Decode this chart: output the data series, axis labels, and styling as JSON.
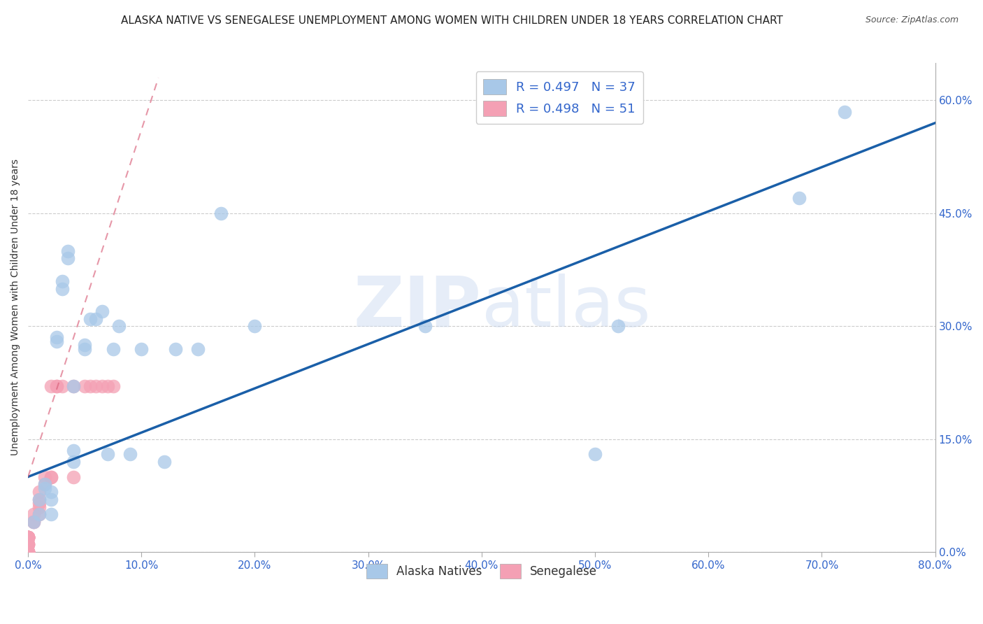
{
  "title": "ALASKA NATIVE VS SENEGALESE UNEMPLOYMENT AMONG WOMEN WITH CHILDREN UNDER 18 YEARS CORRELATION CHART",
  "source": "Source: ZipAtlas.com",
  "ylabel": "Unemployment Among Women with Children Under 18 years",
  "watermark": "ZIPatlas",
  "legend_r1": "R = 0.497",
  "legend_n1": "N = 37",
  "legend_r2": "R = 0.498",
  "legend_n2": "N = 51",
  "xlim": [
    0.0,
    0.8
  ],
  "ylim": [
    0.0,
    0.65
  ],
  "xticks": [
    0.0,
    0.1,
    0.2,
    0.3,
    0.4,
    0.5,
    0.6,
    0.7,
    0.8
  ],
  "yticks_right": [
    0.0,
    0.15,
    0.3,
    0.45,
    0.6
  ],
  "ytick_right_labels": [
    "0.0%",
    "15.0%",
    "30.0%",
    "45.0%",
    "60.0%"
  ],
  "xtick_labels": [
    "0.0%",
    "10.0%",
    "20.0%",
    "30.0%",
    "40.0%",
    "50.0%",
    "60.0%",
    "70.0%",
    "80.0%"
  ],
  "alaska_color": "#a8c8e8",
  "senegalese_color": "#f4a0b4",
  "alaska_line_color": "#1a5fa8",
  "senegalese_line_color": "#d9607a",
  "background_color": "#ffffff",
  "grid_color": "#cccccc",
  "tick_color": "#3366cc",
  "title_fontsize": 11,
  "axis_label_fontsize": 10,
  "tick_fontsize": 11,
  "alaska_x": [
    0.005,
    0.01,
    0.01,
    0.015,
    0.015,
    0.02,
    0.02,
    0.02,
    0.025,
    0.025,
    0.03,
    0.03,
    0.035,
    0.035,
    0.04,
    0.04,
    0.04,
    0.05,
    0.05,
    0.055,
    0.06,
    0.065,
    0.07,
    0.075,
    0.08,
    0.09,
    0.1,
    0.12,
    0.13,
    0.15,
    0.17,
    0.2,
    0.35,
    0.5,
    0.52,
    0.68,
    0.72
  ],
  "alaska_y": [
    0.04,
    0.05,
    0.07,
    0.085,
    0.09,
    0.05,
    0.07,
    0.08,
    0.28,
    0.285,
    0.35,
    0.36,
    0.39,
    0.4,
    0.12,
    0.135,
    0.22,
    0.27,
    0.275,
    0.31,
    0.31,
    0.32,
    0.13,
    0.27,
    0.3,
    0.13,
    0.27,
    0.12,
    0.27,
    0.27,
    0.45,
    0.3,
    0.3,
    0.13,
    0.3,
    0.47,
    0.585
  ],
  "senegalese_x": [
    0.0,
    0.0,
    0.0,
    0.0,
    0.0,
    0.0,
    0.0,
    0.0,
    0.0,
    0.0,
    0.0,
    0.0,
    0.0,
    0.0,
    0.0,
    0.0,
    0.0,
    0.0,
    0.0,
    0.0,
    0.0,
    0.0,
    0.0,
    0.0,
    0.0,
    0.0,
    0.0,
    0.005,
    0.005,
    0.005,
    0.01,
    0.01,
    0.01,
    0.01,
    0.01,
    0.015,
    0.015,
    0.02,
    0.02,
    0.02,
    0.025,
    0.025,
    0.03,
    0.04,
    0.04,
    0.05,
    0.055,
    0.06,
    0.065,
    0.07,
    0.075
  ],
  "senegalese_y": [
    0.0,
    0.0,
    0.0,
    0.0,
    0.0,
    0.0,
    0.0,
    0.0,
    0.0,
    0.0,
    0.0,
    0.01,
    0.01,
    0.01,
    0.01,
    0.02,
    0.02,
    0.02,
    0.02,
    0.02,
    0.02,
    0.02,
    0.02,
    0.02,
    0.02,
    0.02,
    0.02,
    0.04,
    0.04,
    0.05,
    0.05,
    0.06,
    0.065,
    0.07,
    0.08,
    0.09,
    0.1,
    0.1,
    0.1,
    0.22,
    0.22,
    0.22,
    0.22,
    0.1,
    0.22,
    0.22,
    0.22,
    0.22,
    0.22,
    0.22,
    0.22
  ],
  "alaska_line_x": [
    0.0,
    0.8
  ],
  "alaska_line_y": [
    0.1,
    0.57
  ],
  "senegalese_line_x": [
    0.0,
    0.115
  ],
  "senegalese_line_y": [
    0.1,
    0.63
  ]
}
